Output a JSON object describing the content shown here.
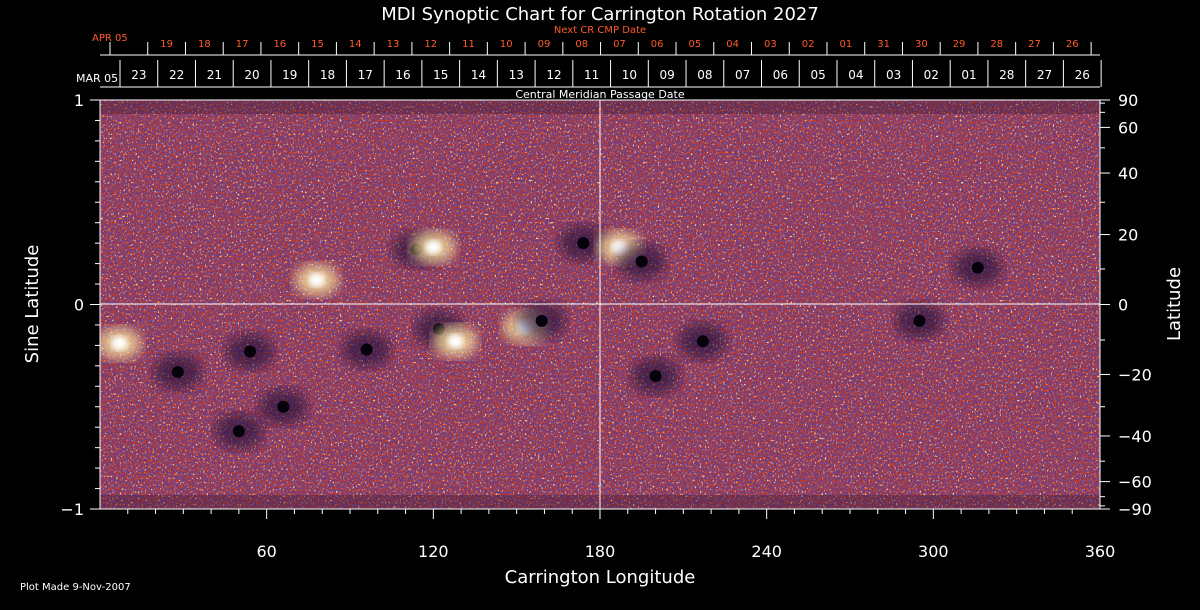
{
  "chart_data": {
    "type": "heatmap",
    "title": "MDI Synoptic Chart for Carrington Rotation 2027",
    "xlabel": "Carrington Longitude",
    "ylabel_left": "Sine Latitude",
    "ylabel_right": "Latitude",
    "xlim": [
      0,
      360
    ],
    "ylim": [
      -1,
      1
    ],
    "x_ticks": [
      60,
      120,
      180,
      240,
      300,
      360
    ],
    "y_ticks_left": [
      "1",
      "0",
      "−1"
    ],
    "y_ticks_right": [
      90,
      60,
      40,
      20,
      0,
      -20,
      -40,
      -60,
      -90
    ],
    "y_ticks_right_labels": [
      "90",
      "60",
      "40",
      "20",
      "0",
      "−20",
      "−40",
      "−60",
      "−90"
    ],
    "grid": "center crosshair at longitude 180 and latitude 0",
    "colormap": "orange-red background, white/yellow positive polarity, dark blue/black negative polarity",
    "cmp_axis": {
      "label": "Central Meridian Passage Date",
      "start_label": "MAR 05",
      "dates": [
        "23",
        "22",
        "21",
        "20",
        "19",
        "18",
        "17",
        "16",
        "15",
        "14",
        "13",
        "12",
        "11",
        "10",
        "09",
        "08",
        "07",
        "06",
        "05",
        "04",
        "03",
        "02",
        "01",
        "28",
        "27",
        "26"
      ]
    },
    "next_cr_axis": {
      "label": "Next CR CMP Date",
      "start_label": "APR 05",
      "dates": [
        "19",
        "18",
        "17",
        "16",
        "15",
        "14",
        "13",
        "12",
        "11",
        "10",
        "09",
        "08",
        "07",
        "06",
        "05",
        "04",
        "03",
        "02",
        "01",
        "31",
        "30",
        "29",
        "28",
        "27",
        "26"
      ]
    },
    "features": [
      {
        "type": "positive",
        "lon": 7,
        "sinlat": -0.19
      },
      {
        "type": "negative",
        "lon": 54,
        "sinlat": -0.23
      },
      {
        "type": "negative",
        "lon": 122,
        "sinlat": -0.12
      },
      {
        "type": "positive",
        "lon": 128,
        "sinlat": -0.18
      },
      {
        "type": "positive",
        "lon": 153,
        "sinlat": -0.11
      },
      {
        "type": "negative",
        "lon": 159,
        "sinlat": -0.08
      },
      {
        "type": "negative",
        "lon": 114,
        "sinlat": 0.27
      },
      {
        "type": "positive",
        "lon": 120,
        "sinlat": 0.28
      },
      {
        "type": "negative",
        "lon": 174,
        "sinlat": 0.3
      },
      {
        "type": "positive",
        "lon": 187,
        "sinlat": 0.28
      },
      {
        "type": "negative",
        "lon": 195,
        "sinlat": 0.21
      },
      {
        "type": "positive",
        "lon": 78,
        "sinlat": 0.12
      },
      {
        "type": "negative",
        "lon": 28,
        "sinlat": -0.33
      },
      {
        "type": "negative",
        "lon": 96,
        "sinlat": -0.22
      },
      {
        "type": "negative",
        "lon": 66,
        "sinlat": -0.5
      },
      {
        "type": "negative",
        "lon": 50,
        "sinlat": -0.62
      },
      {
        "type": "negative",
        "lon": 200,
        "sinlat": -0.35
      },
      {
        "type": "negative",
        "lon": 217,
        "sinlat": -0.18
      },
      {
        "type": "negative",
        "lon": 295,
        "sinlat": -0.08
      },
      {
        "type": "negative",
        "lon": 316,
        "sinlat": 0.18
      }
    ]
  },
  "footer": {
    "plot_made": "Plot Made  9-Nov-2007"
  },
  "colors": {
    "background": "#000000",
    "map_base": "#d7380f",
    "positive": "#ffe9a0",
    "negative": "#1a0d3a",
    "top_axis": "#ff5a28",
    "axes": "#ffffff"
  }
}
